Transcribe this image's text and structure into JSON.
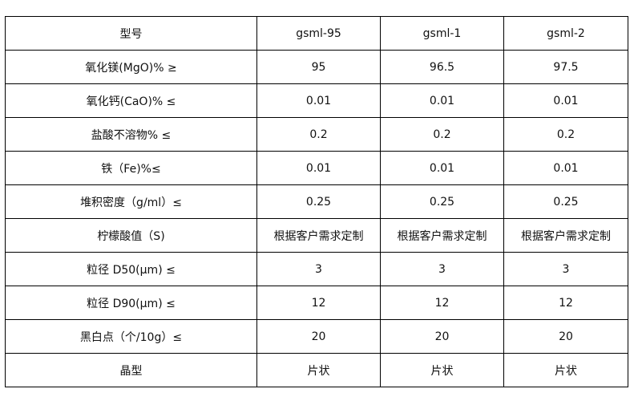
{
  "table": {
    "headers": [
      "型号",
      "gsml-95",
      "gsml-1",
      "gsml-2"
    ],
    "rows": [
      [
        "氧化镁(MgO)% ≥",
        "95",
        "96.5",
        "97.5"
      ],
      [
        "氧化钙(CaO)% ≤",
        "0.01",
        "0.01",
        "0.01"
      ],
      [
        "盐酸不溶物% ≤",
        "0.2",
        "0.2",
        "0.2"
      ],
      [
        "铁（Fe)%≤",
        "0.01",
        "0.01",
        "0.01"
      ],
      [
        "堆积密度（g/ml）≤",
        "0.25",
        "0.25",
        "0.25"
      ],
      [
        "柠檬酸值（S)",
        "根据客户需求定制",
        "根据客户需求定制",
        "根据客户需求定制"
      ],
      [
        "粒径 D50(μm) ≤",
        "3",
        "3",
        "3"
      ],
      [
        "粒径 D90(μm) ≤",
        "12",
        "12",
        "12"
      ],
      [
        "黑白点（个/10g）≤",
        "20",
        "20",
        "20"
      ],
      [
        "晶型",
        "片状",
        "片状",
        "片状"
      ]
    ]
  }
}
